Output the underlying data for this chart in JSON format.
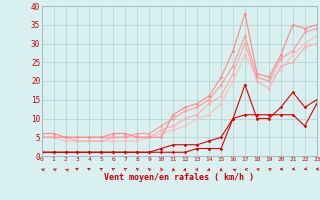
{
  "xlabel": "Vent moyen/en rafales ( km/h )",
  "background_color": "#d8f0f0",
  "grid_color": "#b0d0d0",
  "x_ticks": [
    0,
    1,
    2,
    3,
    4,
    5,
    6,
    7,
    8,
    9,
    10,
    11,
    12,
    13,
    14,
    15,
    16,
    17,
    18,
    19,
    20,
    21,
    22,
    23
  ],
  "y_ticks": [
    0,
    5,
    10,
    15,
    20,
    25,
    30,
    35,
    40
  ],
  "ylim": [
    0,
    40
  ],
  "xlim": [
    0,
    23
  ],
  "series": [
    {
      "x": [
        0,
        1,
        2,
        3,
        4,
        5,
        6,
        7,
        8,
        9,
        10,
        11,
        12,
        13,
        14,
        15,
        16,
        17,
        18,
        19,
        20,
        21,
        22,
        23
      ],
      "y": [
        1,
        1,
        1,
        1,
        1,
        1,
        1,
        1,
        1,
        1,
        1,
        1,
        1,
        2,
        2,
        2,
        10,
        19,
        10,
        10,
        13,
        17,
        13,
        15
      ],
      "color": "#dd0000",
      "lw": 0.8,
      "marker": "D",
      "ms": 1.8
    },
    {
      "x": [
        0,
        1,
        2,
        3,
        4,
        5,
        6,
        7,
        8,
        9,
        10,
        11,
        12,
        13,
        14,
        15,
        16,
        17,
        18,
        19,
        20,
        21,
        22,
        23
      ],
      "y": [
        1,
        1,
        1,
        1,
        1,
        1,
        1,
        1,
        1,
        1,
        2,
        3,
        3,
        3,
        4,
        5,
        10,
        11,
        11,
        11,
        11,
        11,
        8,
        14
      ],
      "color": "#dd0000",
      "lw": 0.8,
      "marker": "D",
      "ms": 1.8
    },
    {
      "x": [
        0,
        1,
        2,
        3,
        4,
        5,
        6,
        7,
        8,
        9,
        10,
        11,
        12,
        13,
        14,
        15,
        16,
        17,
        18,
        19,
        20,
        21,
        22,
        23
      ],
      "y": [
        5,
        5,
        4,
        4,
        4,
        4,
        4,
        4,
        4,
        5,
        6,
        7,
        8,
        10,
        11,
        14,
        20,
        27,
        21,
        20,
        23,
        27,
        30,
        32
      ],
      "color": "#ffbbbb",
      "lw": 0.8,
      "marker": "D",
      "ms": 1.8
    },
    {
      "x": [
        0,
        1,
        2,
        3,
        4,
        5,
        6,
        7,
        8,
        9,
        10,
        11,
        12,
        13,
        14,
        15,
        16,
        17,
        18,
        19,
        20,
        21,
        22,
        23
      ],
      "y": [
        5,
        5,
        5,
        4,
        4,
        4,
        5,
        5,
        5,
        5,
        7,
        8,
        10,
        11,
        14,
        16,
        22,
        30,
        20,
        18,
        24,
        25,
        29,
        30
      ],
      "color": "#ffaaaa",
      "lw": 0.8,
      "marker": "D",
      "ms": 1.8
    },
    {
      "x": [
        0,
        1,
        2,
        3,
        4,
        5,
        6,
        7,
        8,
        9,
        10,
        11,
        12,
        13,
        14,
        15,
        16,
        17,
        18,
        19,
        20,
        21,
        22,
        23
      ],
      "y": [
        5,
        5,
        5,
        5,
        5,
        5,
        5,
        5,
        6,
        6,
        8,
        10,
        12,
        13,
        15,
        19,
        24,
        32,
        21,
        20,
        26,
        28,
        33,
        34
      ],
      "color": "#ff9999",
      "lw": 0.8,
      "marker": "D",
      "ms": 1.8
    },
    {
      "x": [
        0,
        1,
        2,
        3,
        4,
        5,
        6,
        7,
        8,
        9,
        10,
        11,
        12,
        13,
        14,
        15,
        16,
        17,
        18,
        19,
        20,
        21,
        22,
        23
      ],
      "y": [
        6,
        6,
        5,
        5,
        5,
        5,
        6,
        6,
        5,
        5,
        5,
        11,
        13,
        14,
        16,
        21,
        28,
        38,
        22,
        21,
        27,
        35,
        34,
        35
      ],
      "color": "#ff8888",
      "lw": 0.8,
      "marker": "D",
      "ms": 1.8
    }
  ],
  "wind_arrows": [
    [
      0,
      225
    ],
    [
      1,
      230
    ],
    [
      2,
      220
    ],
    [
      3,
      215
    ],
    [
      4,
      215
    ],
    [
      5,
      210
    ],
    [
      6,
      210
    ],
    [
      7,
      205
    ],
    [
      8,
      200
    ],
    [
      9,
      195
    ],
    [
      10,
      190
    ],
    [
      11,
      185
    ],
    [
      12,
      175
    ],
    [
      13,
      170
    ],
    [
      14,
      175
    ],
    [
      15,
      180
    ],
    [
      16,
      220
    ],
    [
      17,
      235
    ],
    [
      18,
      240
    ],
    [
      19,
      245
    ],
    [
      20,
      270
    ],
    [
      21,
      285
    ],
    [
      22,
      295
    ],
    [
      23,
      280
    ]
  ]
}
